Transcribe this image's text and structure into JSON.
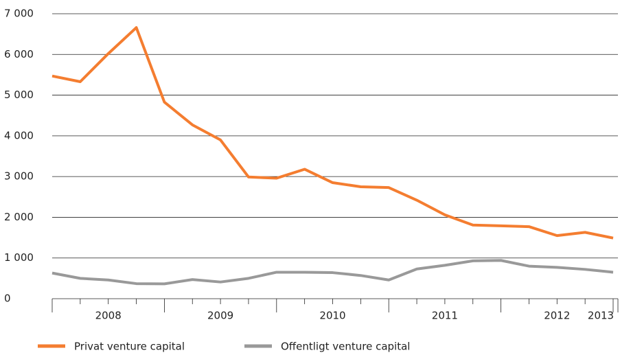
{
  "chart_data": {
    "type": "line",
    "categories": [
      "2008",
      null,
      null,
      null,
      "2009",
      null,
      null,
      null,
      "2010",
      null,
      null,
      null,
      "2011",
      null,
      null,
      null,
      "2012",
      null,
      null,
      null,
      "2013"
    ],
    "series": [
      {
        "name": "Privat venture capital",
        "color": "#f47d30",
        "values": [
          5470,
          5330,
          6020,
          6660,
          4830,
          4270,
          3900,
          2990,
          2960,
          3180,
          2850,
          2750,
          2730,
          2420,
          2060,
          1810,
          1790,
          1770,
          1550,
          1630,
          1490
        ]
      },
      {
        "name": "Offentligt venture capital",
        "color": "#999999",
        "values": [
          630,
          500,
          460,
          370,
          365,
          470,
          410,
          500,
          650,
          650,
          640,
          570,
          460,
          730,
          820,
          930,
          940,
          800,
          770,
          720,
          650
        ]
      }
    ],
    "ylim": [
      0,
      7000
    ],
    "yticks": [
      0,
      {
        "value": 1000,
        "label": "1 000"
      },
      {
        "value": 2000,
        "label": "2 000"
      },
      {
        "value": 3000,
        "label": "3 000"
      },
      {
        "value": 4000,
        "label": "4 000"
      },
      {
        "value": 5000,
        "label": "5 000"
      },
      {
        "value": 6000,
        "label": "6 000"
      },
      {
        "value": 7000,
        "label": "7 000"
      }
    ],
    "grid": true,
    "legend": "bottom"
  }
}
